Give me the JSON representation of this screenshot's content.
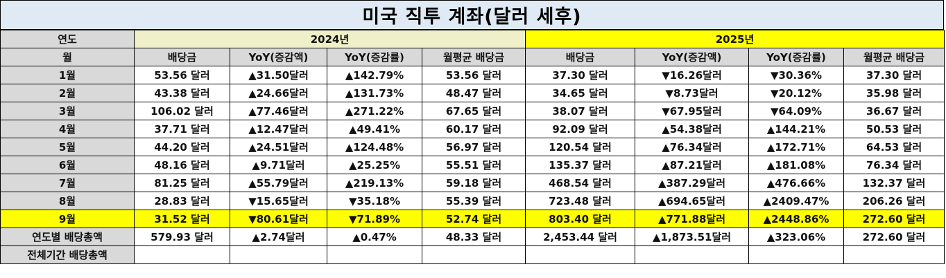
{
  "title": "미국 직투 계좌(달러 세후)",
  "labels": {
    "year": "연도",
    "month": "월",
    "total_year": "연도별 배당총액",
    "total_all": "전체기간 배당총액"
  },
  "years": [
    "2024년",
    "2025년"
  ],
  "columns": [
    "배당금",
    "YoY(증감액)",
    "YoY(증감률)",
    "월평균 배당금"
  ],
  "colors": {
    "up": "#ff0000",
    "down": "#0000ff",
    "highlight": "#ffff00",
    "header_2024": "#efefc9",
    "label_bg": "#d9d9d9",
    "title_bg": "#dfeaf5"
  },
  "rows": [
    {
      "month": "1월",
      "y2024": [
        "53.56 달러",
        "▲31.50달러",
        "▲142.79%",
        "53.56 달러"
      ],
      "y2025": [
        "37.30 달러",
        "▼16.26달러",
        "▼30.36%",
        "37.30 달러"
      ]
    },
    {
      "month": "2월",
      "y2024": [
        "43.38 달러",
        "▲24.66달러",
        "▲131.73%",
        "48.47 달러"
      ],
      "y2025": [
        "34.65 달러",
        "▼8.73달러",
        "▼20.12%",
        "35.98 달러"
      ]
    },
    {
      "month": "3월",
      "y2024": [
        "106.02 달러",
        "▲77.46달러",
        "▲271.22%",
        "67.65 달러"
      ],
      "y2025": [
        "38.07 달러",
        "▼67.95달러",
        "▼64.09%",
        "36.67 달러"
      ]
    },
    {
      "month": "4월",
      "y2024": [
        "37.71 달러",
        "▲12.47달러",
        "▲49.41%",
        "60.17 달러"
      ],
      "y2025": [
        "92.09 달러",
        "▲54.38달러",
        "▲144.21%",
        "50.53 달러"
      ]
    },
    {
      "month": "5월",
      "y2024": [
        "44.20 달러",
        "▲24.51달러",
        "▲124.48%",
        "56.97 달러"
      ],
      "y2025": [
        "120.54 달러",
        "▲76.34달러",
        "▲172.71%",
        "64.53 달러"
      ]
    },
    {
      "month": "6월",
      "y2024": [
        "48.16 달러",
        "▲9.71달러",
        "▲25.25%",
        "55.51 달러"
      ],
      "y2025": [
        "135.37 달러",
        "▲87.21달러",
        "▲181.08%",
        "76.34 달러"
      ]
    },
    {
      "month": "7월",
      "y2024": [
        "81.25 달러",
        "▲55.79달러",
        "▲219.13%",
        "59.18 달러"
      ],
      "y2025": [
        "468.54 달러",
        "▲387.29달러",
        "▲476.66%",
        "132.37 달러"
      ]
    },
    {
      "month": "8월",
      "y2024": [
        "28.83 달러",
        "▼15.65달러",
        "▼35.18%",
        "55.39 달러"
      ],
      "y2025": [
        "723.48 달러",
        "▲694.65달러",
        "▲2409.47%",
        "206.26 달러"
      ]
    },
    {
      "month": "9월",
      "y2024": [
        "31.52 달러",
        "▼80.61달러",
        "▼71.89%",
        "52.74 달러"
      ],
      "y2025": [
        "803.40 달러",
        "▲771.88달러",
        "▲2448.86%",
        "272.60 달러"
      ]
    }
  ],
  "total_year": {
    "y2024": [
      "579.93 달러",
      "▲2.74달러",
      "▲0.47%",
      "48.33 달러"
    ],
    "y2025": [
      "2,453.44 달러",
      "▲1,873.51달러",
      "▲323.06%",
      "272.60 달러"
    ]
  }
}
